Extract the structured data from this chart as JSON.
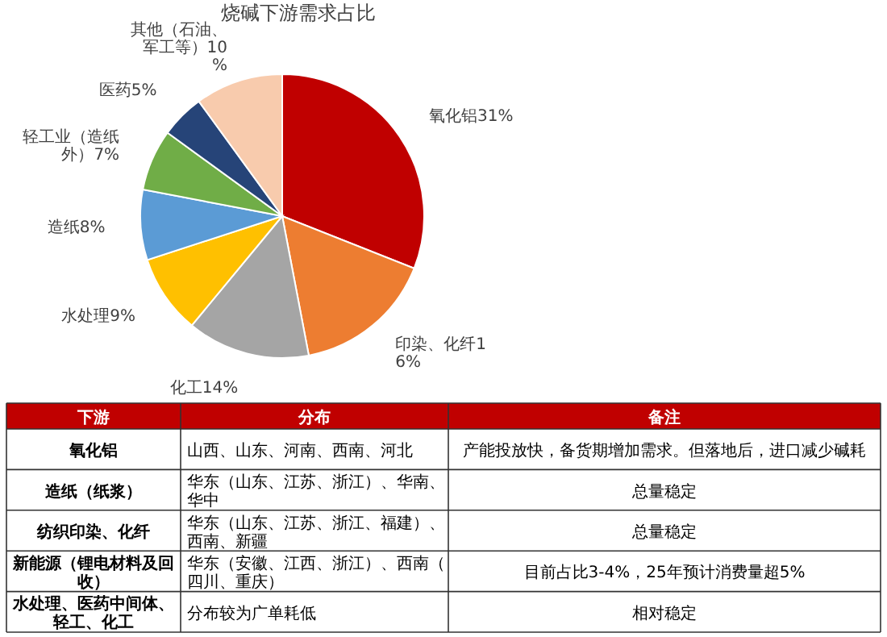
{
  "chart_data": [
    {
      "type": "pie",
      "title": "烧碱下游需求占比",
      "categories": [
        "氧化铝",
        "印染、化纤",
        "化工",
        "水处理",
        "造纸",
        "轻工业（造纸外）",
        "医药",
        "其他（石油、军工等）"
      ],
      "values": [
        31,
        16,
        14,
        9,
        8,
        7,
        5,
        10
      ],
      "colors": [
        "#c00000",
        "#ed7d31",
        "#a5a5a5",
        "#ffc000",
        "#5b9bd5",
        "#70ad47",
        "#264478",
        "#f8cbad"
      ],
      "value_labels": [
        "31%",
        "16%",
        "14%",
        "9%",
        "8%",
        "7%",
        "5%",
        "10%"
      ]
    },
    {
      "type": "other",
      "annotations": [
        "下游",
        "分布",
        "备注",
        "氧化铝",
        "山西、山东、河南、西南、河北",
        "产能投放快，备货期增加需求。但落地后，进口减少碱耗",
        "造纸（纸浆）",
        "华东（山东、江苏、浙江）、华南、华中",
        "总量稳定",
        "纺织印染、化纤",
        "华东（山东、江苏、浙江、福建）、西南、新疆",
        "总量稳定",
        "新能源（锂电材料及回收）",
        "华东（安徽、江西、浙江）、西南（四川、重庆）",
        "目前占比3-4%，25年预计消费量超5%",
        "水处理、医药中间体、轻工、化工",
        "分布较为广单耗低",
        "相对稳定"
      ]
    }
  ]
}
